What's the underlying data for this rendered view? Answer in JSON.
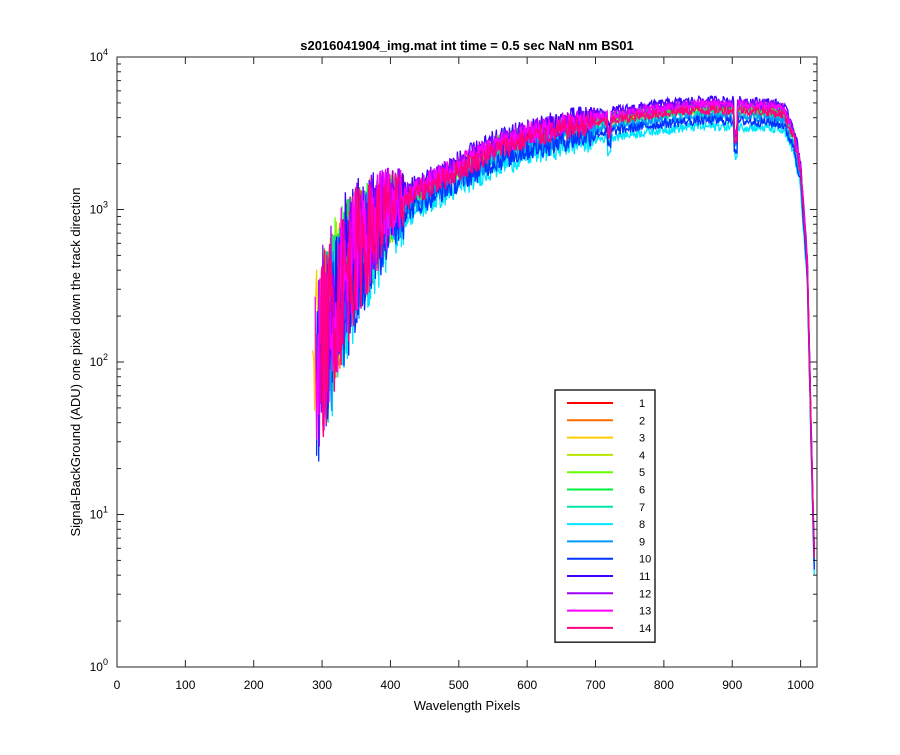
{
  "chart_data": {
    "type": "line",
    "title": "s2016041904_img.mat int time = 0.5 sec  NaN nm BS01",
    "xlabel": "Wavelength Pixels",
    "ylabel": "Signal-BackGround (ADU) one pixel down the track direction",
    "xlim": [
      0,
      1024
    ],
    "ylim": [
      1,
      10000
    ],
    "yscale": "log",
    "grid": false,
    "legend_position": "lower-right",
    "xticks": [
      0,
      100,
      200,
      300,
      400,
      500,
      600,
      700,
      800,
      900,
      1000
    ],
    "xtick_labels": [
      "0",
      "100",
      "200",
      "300",
      "400",
      "500",
      "600",
      "700",
      "800",
      "900",
      "1000"
    ],
    "yticks": [
      {
        "value": 1,
        "base": "10",
        "exp": "0"
      },
      {
        "value": 10,
        "base": "10",
        "exp": "1"
      },
      {
        "value": 100,
        "base": "10",
        "exp": "2"
      },
      {
        "value": 1000,
        "base": "10",
        "exp": "3"
      },
      {
        "value": 10000,
        "base": "10",
        "exp": "4"
      }
    ],
    "profile": {
      "x": [
        285,
        300,
        320,
        350,
        400,
        450,
        500,
        550,
        600,
        650,
        700,
        750,
        800,
        850,
        900,
        950,
        975,
        990,
        1000,
        1010,
        1015,
        1020
      ],
      "y": [
        60,
        120,
        250,
        520,
        1000,
        1350,
        1800,
        2400,
        2900,
        3300,
        3700,
        4000,
        4300,
        4500,
        4500,
        4400,
        4200,
        3000,
        1800,
        400,
        40,
        5
      ]
    },
    "series": [
      {
        "name": "1",
        "color": "#ff0000",
        "scale": 1.0
      },
      {
        "name": "2",
        "color": "#ff6a00",
        "scale": 1.04
      },
      {
        "name": "3",
        "color": "#ffcc00",
        "scale": 1.06
      },
      {
        "name": "4",
        "color": "#b8e600",
        "scale": 1.03
      },
      {
        "name": "5",
        "color": "#66ff00",
        "scale": 1.02
      },
      {
        "name": "6",
        "color": "#00f040",
        "scale": 1.05
      },
      {
        "name": "7",
        "color": "#00e6a8",
        "scale": 0.95
      },
      {
        "name": "8",
        "color": "#00e6ff",
        "scale": 0.78
      },
      {
        "name": "9",
        "color": "#0099ff",
        "scale": 0.9
      },
      {
        "name": "10",
        "color": "#0033ff",
        "scale": 0.85
      },
      {
        "name": "11",
        "color": "#4000ff",
        "scale": 1.15
      },
      {
        "name": "12",
        "color": "#a000ff",
        "scale": 1.1
      },
      {
        "name": "13",
        "color": "#ff00ff",
        "scale": 1.08
      },
      {
        "name": "14",
        "color": "#ff0080",
        "scale": 1.0
      }
    ]
  }
}
